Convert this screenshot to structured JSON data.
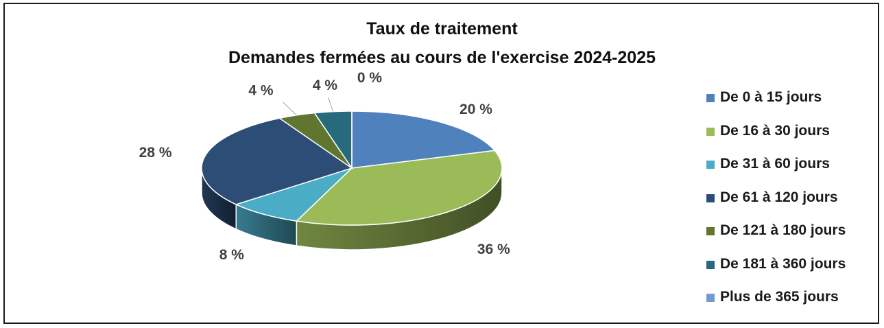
{
  "chart_data": {
    "type": "pie",
    "title": "Taux de traitement",
    "subtitle": "Demandes fermées au cours de l'exercise 2024-2025",
    "categories": [
      "De 0 à 15 jours",
      "De 16 à 30 jours",
      "De 31 à 60 jours",
      "De 61 à 120 jours",
      "De 121 à 180 jours",
      "De 181 à 360 jours",
      "Plus de 365 jours"
    ],
    "values": [
      20,
      36,
      8,
      28,
      4,
      4,
      0
    ],
    "labels": [
      "20 %",
      "36 %",
      "8 %",
      "28 %",
      "4 %",
      "4 %",
      "0 %"
    ],
    "colors": [
      "#4F81BD",
      "#9BBB59",
      "#4BACC6",
      "#2C4D75",
      "#5F7530",
      "#276A7C",
      "#729ACA"
    ],
    "legend_position": "right",
    "style": "3d"
  }
}
